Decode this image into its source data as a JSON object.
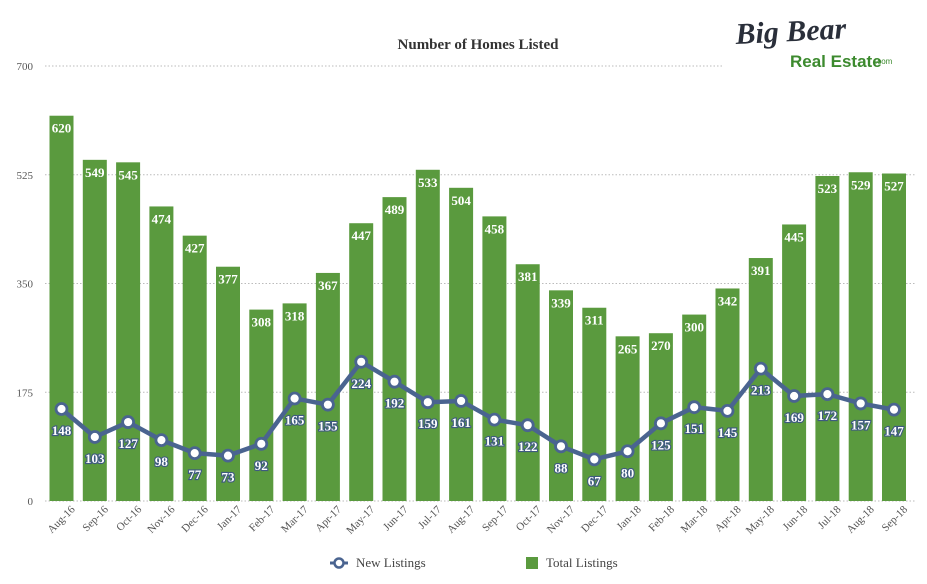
{
  "logo": {
    "top_text": "Big Bear",
    "bottom_text": "Real Estate",
    "suffix": ".com"
  },
  "colors": {
    "bar": "#5a9a3e",
    "line": "#4a6490",
    "grid": "#bbbbbb"
  },
  "chart_data": {
    "type": "bar",
    "title": "Number of Homes Listed",
    "xlabel": "",
    "ylabel": "",
    "ylim": [
      0,
      700
    ],
    "yticks": [
      0,
      175,
      350,
      525,
      700
    ],
    "grid": true,
    "legend_position": "bottom",
    "categories": [
      "Aug-16",
      "Sep-16",
      "Oct-16",
      "Nov-16",
      "Dec-16",
      "Jan-17",
      "Feb-17",
      "Mar-17",
      "Apr-17",
      "May-17",
      "Jun-17",
      "Jul-17",
      "Aug-17",
      "Sep-17",
      "Oct-17",
      "Nov-17",
      "Dec-17",
      "Jan-18",
      "Feb-18",
      "Mar-18",
      "Apr-18",
      "May-18",
      "Jun-18",
      "Jul-18",
      "Aug-18",
      "Sep-18"
    ],
    "series": [
      {
        "name": "New Listings",
        "type": "line",
        "values": [
          148,
          103,
          127,
          98,
          77,
          73,
          92,
          165,
          155,
          224,
          192,
          159,
          161,
          131,
          122,
          88,
          67,
          80,
          125,
          151,
          145,
          213,
          169,
          172,
          157,
          147
        ]
      },
      {
        "name": "Total Listings",
        "type": "bar",
        "values": [
          620,
          549,
          545,
          474,
          427,
          377,
          308,
          318,
          367,
          447,
          489,
          533,
          504,
          458,
          381,
          339,
          311,
          265,
          270,
          300,
          342,
          391,
          445,
          523,
          529,
          527
        ]
      }
    ]
  }
}
